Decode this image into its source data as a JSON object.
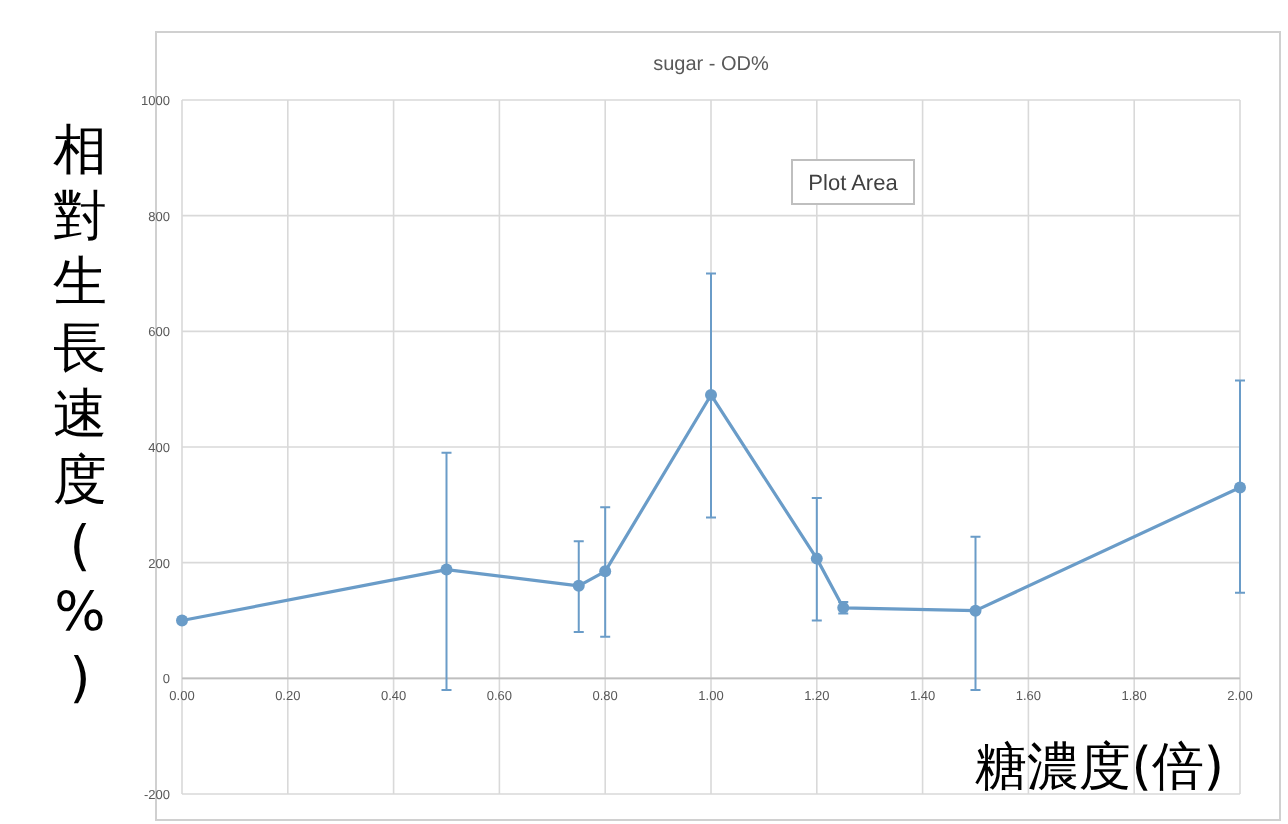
{
  "chart_data": {
    "type": "line",
    "title": "sugar - OD%",
    "xlabel": "糖濃度(倍)",
    "ylabel": "相對生長速度(%)",
    "x": [
      0,
      0.5,
      0.75,
      0.8,
      1.0,
      1.2,
      1.25,
      1.5,
      2.0
    ],
    "series": [
      {
        "color": "#6a9cc8",
        "values": [
          100,
          188,
          160,
          185,
          490,
          207,
          122,
          117,
          330
        ],
        "errors": [
          null,
          [
            -20,
            390
          ],
          [
            80,
            237
          ],
          [
            72,
            296
          ],
          [
            278,
            700
          ],
          [
            100,
            312
          ],
          [
            112,
            132
          ],
          [
            -20,
            245
          ],
          [
            148,
            515
          ]
        ]
      }
    ],
    "xlim": [
      0,
      2
    ],
    "ylim": [
      -200,
      1000
    ],
    "xticks": [
      {
        "value": 0,
        "label": "0.00"
      },
      {
        "value": 0.2,
        "label": "0.20"
      },
      {
        "value": 0.4,
        "label": "0.40"
      },
      {
        "value": 0.6,
        "label": "0.60"
      },
      {
        "value": 0.8,
        "label": "0.80"
      },
      {
        "value": 1.0,
        "label": "1.00"
      },
      {
        "value": 1.2,
        "label": "1.20"
      },
      {
        "value": 1.4,
        "label": "1.40"
      },
      {
        "value": 1.6,
        "label": "1.60"
      },
      {
        "value": 1.8,
        "label": "1.80"
      },
      {
        "value": 2.0,
        "label": "2.00"
      }
    ],
    "yticks": [
      -200,
      0,
      200,
      400,
      600,
      800,
      1000
    ],
    "grid": true,
    "marker": "circle",
    "line_style": "solid",
    "annotations": [
      "Plot Area"
    ]
  }
}
